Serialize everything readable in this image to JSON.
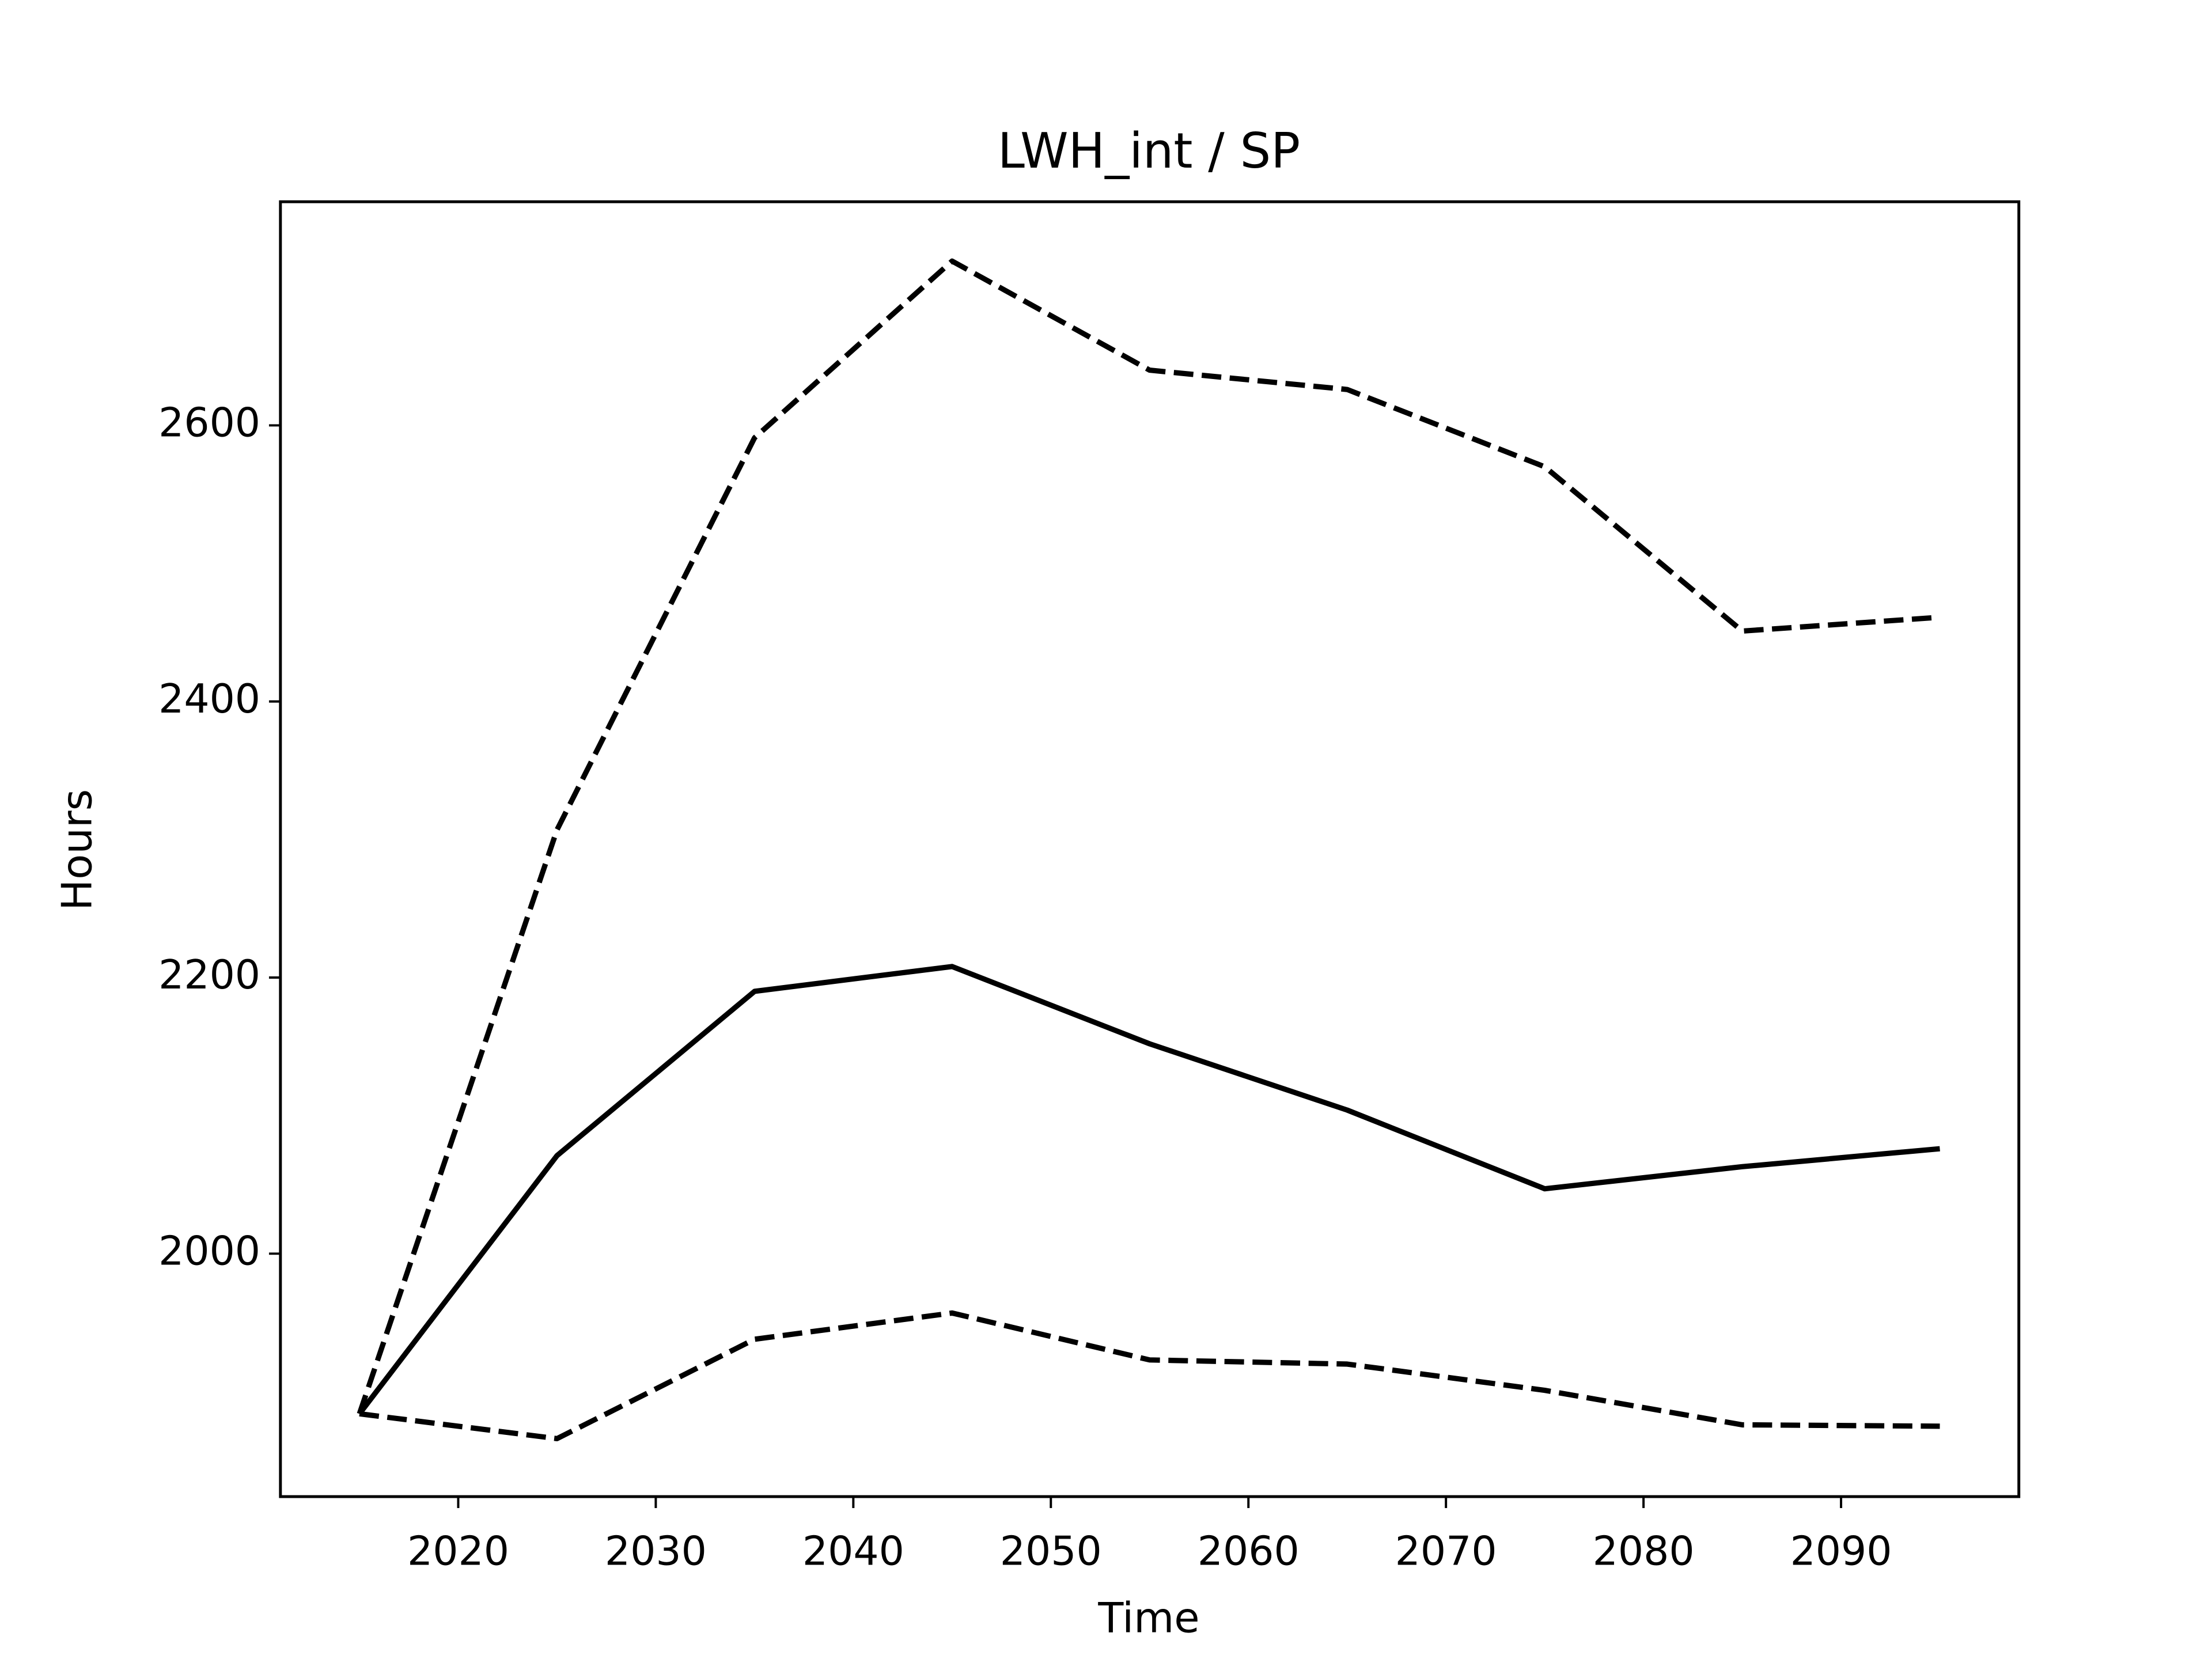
{
  "chart_data": {
    "type": "line",
    "title": "LWH_int / SP",
    "xlabel": "Time",
    "ylabel": "Hours",
    "x": [
      2015,
      2025,
      2035,
      2045,
      2055,
      2065,
      2075,
      2085,
      2095
    ],
    "series": [
      {
        "color": "#000000",
        "linestyle": "solid",
        "values": [
          1884,
          2071,
          2190,
          2208,
          2152,
          2104,
          2047,
          2063,
          2076
        ]
      },
      {
        "color": "#000000",
        "linestyle": "dashed",
        "values": [
          1884,
          2307,
          2591,
          2719,
          2640,
          2626,
          2570,
          2451,
          2461
        ]
      },
      {
        "color": "#000000",
        "linestyle": "dashed",
        "values": [
          1884,
          1866,
          1938,
          1957,
          1923,
          1920,
          1901,
          1876,
          1875
        ]
      }
    ],
    "xlim": [
      2011,
      2099
    ],
    "xticks": [
      2020,
      2030,
      2040,
      2050,
      2060,
      2070,
      2080,
      2090
    ],
    "ylim": [
      1824,
      2762
    ],
    "yticks": [
      2000,
      2200,
      2400,
      2600
    ],
    "grid": false
  }
}
